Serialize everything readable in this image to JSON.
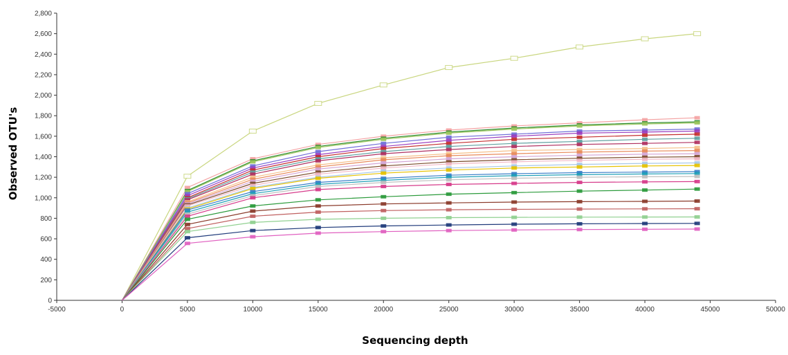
{
  "chart_data": {
    "type": "line",
    "title": "",
    "xlabel": "Sequencing depth",
    "ylabel": "Observed OTU's",
    "xlim": [
      -5000,
      50000
    ],
    "ylim": [
      0,
      2800
    ],
    "x_ticks": [
      -5000,
      0,
      5000,
      10000,
      15000,
      20000,
      25000,
      30000,
      35000,
      40000,
      45000,
      50000
    ],
    "x_tick_labels": [
      "-5000",
      "0",
      "5000",
      "10000",
      "15000",
      "20000",
      "25000",
      "30000",
      "35000",
      "40000",
      "45000",
      "50000"
    ],
    "y_ticks": [
      0,
      200,
      400,
      600,
      800,
      1000,
      1200,
      1400,
      1600,
      1800,
      2000,
      2200,
      2400,
      2600,
      2800
    ],
    "y_tick_labels": [
      "0",
      "200",
      "400",
      "600",
      "800",
      "1,000",
      "1,200",
      "1,400",
      "1,600",
      "1,800",
      "2,000",
      "2,200",
      "2,400",
      "2,600",
      "2,800"
    ],
    "grid": false,
    "legend": "none",
    "x": [
      0,
      5000,
      10000,
      15000,
      20000,
      25000,
      30000,
      35000,
      40000,
      44000
    ],
    "series": [
      {
        "color": "#c9d67f",
        "values": [
          0,
          1210,
          1650,
          1920,
          2100,
          2270,
          2360,
          2470,
          2550,
          2600
        ]
      },
      {
        "color": "#f4a3a3",
        "values": [
          0,
          1100,
          1380,
          1520,
          1600,
          1660,
          1700,
          1730,
          1760,
          1780
        ]
      },
      {
        "color": "#2e8b2e",
        "values": [
          0,
          1070,
          1360,
          1500,
          1580,
          1640,
          1680,
          1710,
          1730,
          1740
        ]
      },
      {
        "color": "#a0c860",
        "values": [
          0,
          1060,
          1350,
          1490,
          1570,
          1630,
          1670,
          1700,
          1720,
          1730
        ]
      },
      {
        "color": "#6f6fd8",
        "values": [
          0,
          1040,
          1310,
          1450,
          1530,
          1590,
          1620,
          1650,
          1660,
          1670
        ]
      },
      {
        "color": "#9b3fbf",
        "values": [
          0,
          1020,
          1290,
          1420,
          1500,
          1560,
          1600,
          1630,
          1640,
          1650
        ]
      },
      {
        "color": "#c42e2e",
        "values": [
          0,
          1000,
          1270,
          1400,
          1480,
          1530,
          1570,
          1590,
          1610,
          1620
        ]
      },
      {
        "color": "#5f9f9f",
        "values": [
          0,
          990,
          1250,
          1380,
          1450,
          1500,
          1530,
          1550,
          1570,
          1580
        ]
      },
      {
        "color": "#b03060",
        "values": [
          0,
          980,
          1230,
          1360,
          1430,
          1470,
          1500,
          1520,
          1530,
          1540
        ]
      },
      {
        "color": "#f5c08a",
        "values": [
          0,
          960,
          1200,
          1320,
          1390,
          1430,
          1460,
          1470,
          1480,
          1490
        ]
      },
      {
        "color": "#e88a5a",
        "values": [
          0,
          950,
          1180,
          1300,
          1370,
          1410,
          1430,
          1445,
          1455,
          1460
        ]
      },
      {
        "color": "#d4a5d4",
        "values": [
          0,
          940,
          1160,
          1280,
          1340,
          1380,
          1400,
          1415,
          1425,
          1430
        ]
      },
      {
        "color": "#7a4a2a",
        "values": [
          0,
          930,
          1140,
          1250,
          1310,
          1350,
          1370,
          1385,
          1395,
          1400
        ]
      },
      {
        "color": "#f2b8c6",
        "values": [
          0,
          920,
          1120,
          1230,
          1290,
          1330,
          1350,
          1365,
          1375,
          1380
        ]
      },
      {
        "color": "#a8c8e8",
        "values": [
          0,
          900,
          1100,
          1200,
          1260,
          1290,
          1310,
          1325,
          1335,
          1340
        ]
      },
      {
        "color": "#e6c200",
        "values": [
          0,
          890,
          1090,
          1190,
          1240,
          1270,
          1290,
          1300,
          1310,
          1315
        ]
      },
      {
        "color": "#3a7ec8",
        "values": [
          0,
          880,
          1060,
          1150,
          1190,
          1220,
          1235,
          1245,
          1250,
          1255
        ]
      },
      {
        "color": "#1fa0b8",
        "values": [
          0,
          860,
          1040,
          1130,
          1170,
          1200,
          1215,
          1225,
          1232,
          1236
        ]
      },
      {
        "color": "#bfbfbf",
        "values": [
          0,
          840,
          1020,
          1110,
          1150,
          1175,
          1190,
          1200,
          1205,
          1208
        ]
      },
      {
        "color": "#d63a8a",
        "values": [
          0,
          820,
          1000,
          1080,
          1110,
          1130,
          1140,
          1150,
          1155,
          1158
        ]
      },
      {
        "color": "#2a9a3a",
        "values": [
          0,
          790,
          920,
          980,
          1010,
          1035,
          1050,
          1065,
          1075,
          1085
        ]
      },
      {
        "color": "#8a3a2a",
        "values": [
          0,
          740,
          870,
          920,
          940,
          950,
          958,
          962,
          965,
          968
        ]
      },
      {
        "color": "#c06060",
        "values": [
          0,
          700,
          820,
          860,
          875,
          883,
          887,
          890,
          892,
          893
        ]
      },
      {
        "color": "#90d090",
        "values": [
          0,
          670,
          760,
          790,
          800,
          806,
          809,
          811,
          812,
          813
        ]
      },
      {
        "color": "#1f3a7a",
        "values": [
          0,
          610,
          680,
          710,
          725,
          735,
          742,
          746,
          749,
          750
        ]
      },
      {
        "color": "#e060c0",
        "values": [
          0,
          555,
          620,
          655,
          670,
          680,
          686,
          690,
          693,
          695
        ]
      }
    ]
  }
}
